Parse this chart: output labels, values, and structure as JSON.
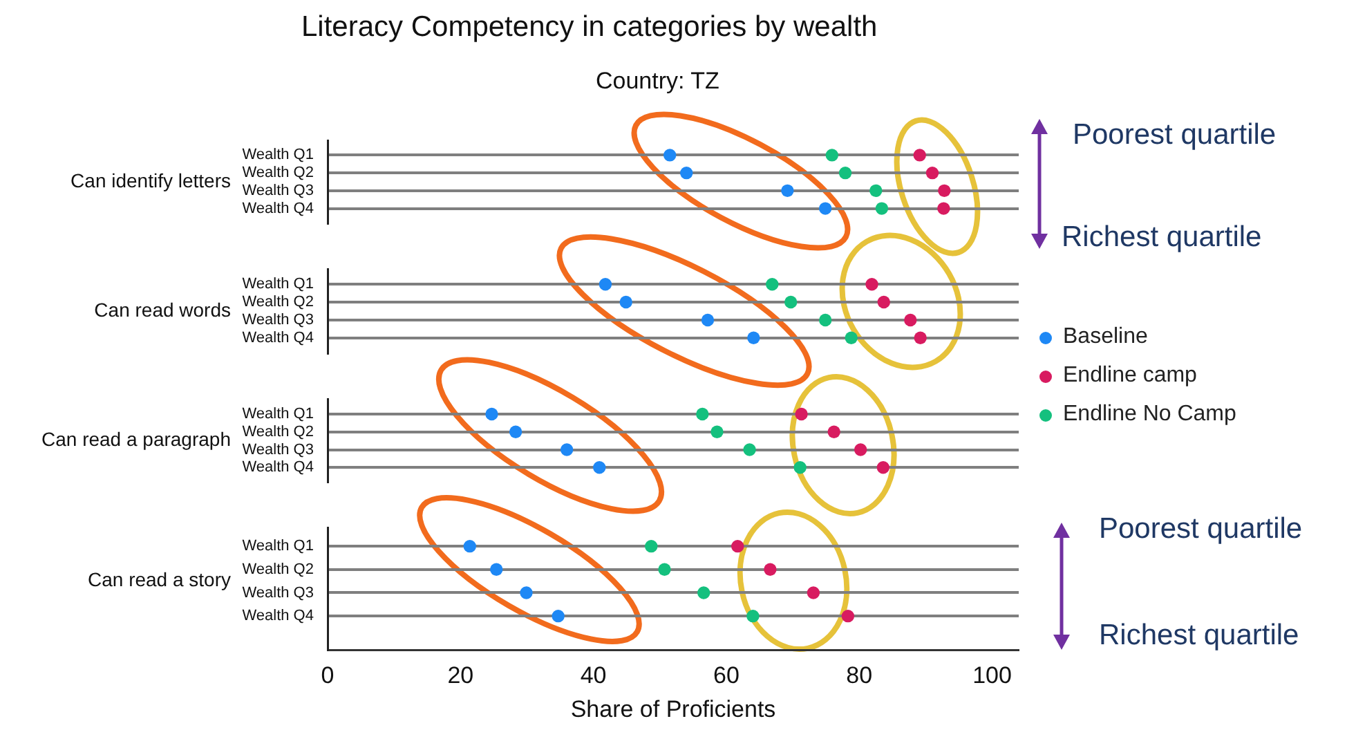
{
  "chart_data": [
    {
      "type": "scatter",
      "orientation": "horizontal",
      "title": "Literacy Competency in categories by wealth",
      "subtitle": "Country: TZ",
      "ylabel": "Can identify letters",
      "categories": [
        "Wealth Q1",
        "Wealth Q2",
        "Wealth Q3",
        "Wealth Q4"
      ],
      "series": [
        {
          "color": "#1e88f5",
          "values": [
            51.5,
            54.0,
            69.2,
            74.9
          ]
        },
        {
          "color": "#d81b60",
          "values": [
            89.1,
            91.0,
            92.8,
            92.7
          ]
        },
        {
          "color": "#14c07e",
          "values": [
            75.9,
            77.9,
            82.5,
            83.4
          ]
        }
      ],
      "xlim": [
        0,
        104
      ],
      "xticks": [
        0,
        20,
        40,
        60,
        80,
        100
      ],
      "grid": "y",
      "marker": "circle",
      "tick_labels": "y",
      "annotations": [
        "Poorest quartile",
        "Richest quartile"
      ]
    },
    {
      "type": "scatter",
      "orientation": "horizontal",
      "ylabel": "Can read words",
      "categories": [
        "Wealth Q1",
        "Wealth Q2",
        "Wealth Q3",
        "Wealth Q4"
      ],
      "series": [
        {
          "name": "Baseline",
          "color": "#1e88f5",
          "values": [
            41.8,
            44.9,
            57.2,
            64.1
          ]
        },
        {
          "name": "Endline camp",
          "color": "#d81b60",
          "values": [
            81.9,
            83.7,
            87.7,
            89.2
          ]
        },
        {
          "name": "Endline No Camp",
          "color": "#14c07e",
          "values": [
            66.9,
            69.7,
            74.9,
            78.8
          ]
        }
      ],
      "xlim": [
        0,
        104
      ],
      "xticks": [
        0,
        20,
        40,
        60,
        80,
        100
      ],
      "grid": "y",
      "marker": "circle",
      "tick_labels": "y",
      "legend": "right"
    },
    {
      "type": "scatter",
      "orientation": "horizontal",
      "ylabel": "Can read a paragraph",
      "categories": [
        "Wealth Q1",
        "Wealth Q2",
        "Wealth Q3",
        "Wealth Q4"
      ],
      "series": [
        {
          "color": "#1e88f5",
          "values": [
            24.7,
            28.3,
            36.0,
            40.9
          ]
        },
        {
          "color": "#d81b60",
          "values": [
            71.3,
            76.2,
            80.2,
            83.6
          ]
        },
        {
          "color": "#14c07e",
          "values": [
            56.4,
            58.6,
            63.5,
            71.1
          ]
        }
      ],
      "xlim": [
        0,
        104
      ],
      "xticks": [
        0,
        20,
        40,
        60,
        80,
        100
      ],
      "grid": "y",
      "marker": "circle",
      "tick_labels": "y"
    },
    {
      "type": "scatter",
      "orientation": "horizontal",
      "ylabel": "Can read a story",
      "xlabel": "Share of Proficients",
      "categories": [
        "Wealth Q1",
        "Wealth Q2",
        "Wealth Q3",
        "Wealth Q4"
      ],
      "series": [
        {
          "color": "#1e88f5",
          "values": [
            21.4,
            25.4,
            29.9,
            34.7
          ]
        },
        {
          "color": "#d81b60",
          "values": [
            61.7,
            66.6,
            73.1,
            78.3
          ]
        },
        {
          "color": "#14c07e",
          "values": [
            48.7,
            50.7,
            56.6,
            64.0
          ]
        }
      ],
      "xlim": [
        0,
        104
      ],
      "xticks": [
        0,
        20,
        40,
        60,
        80,
        100
      ],
      "grid": "y",
      "marker": "circle",
      "annotations": [
        "Poorest quartile",
        "Richest quartile"
      ]
    }
  ]
}
